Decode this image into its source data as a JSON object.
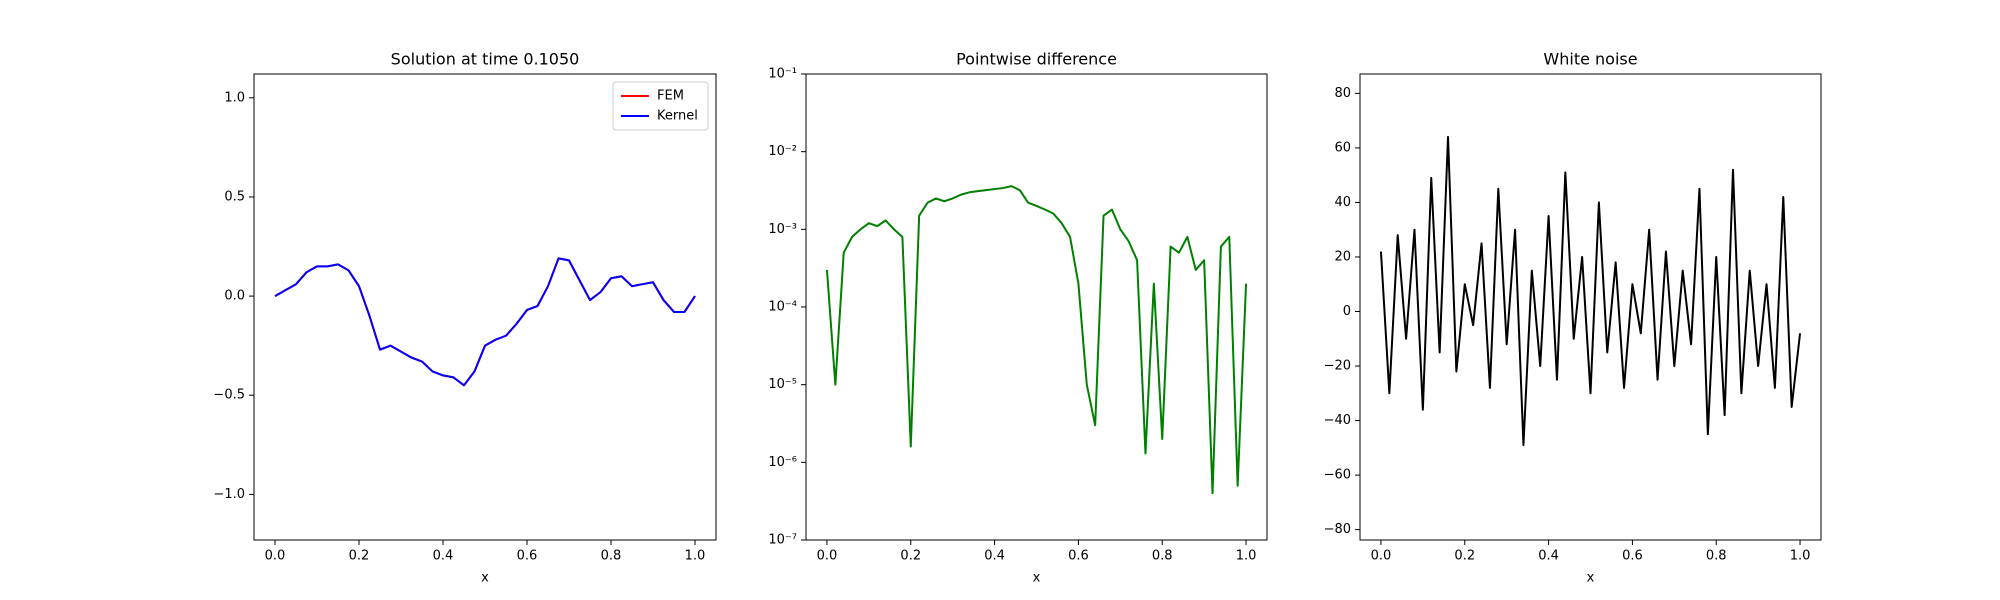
{
  "chart_data": [
    {
      "type": "line",
      "title": "Solution at time 0.1050",
      "x_label": "x",
      "x": [
        0,
        0.025,
        0.05,
        0.075,
        0.1,
        0.125,
        0.15,
        0.175,
        0.2,
        0.225,
        0.25,
        0.275,
        0.3,
        0.325,
        0.35,
        0.375,
        0.4,
        0.425,
        0.45,
        0.475,
        0.5,
        0.525,
        0.55,
        0.575,
        0.6,
        0.625,
        0.65,
        0.675,
        0.7,
        0.725,
        0.75,
        0.775,
        0.8,
        0.825,
        0.85,
        0.875,
        0.9,
        0.925,
        0.95,
        0.975,
        1.0
      ],
      "series": [
        {
          "name": "FEM",
          "color": "#ff0000",
          "values": [
            0.0,
            0.03,
            0.06,
            0.12,
            0.15,
            0.15,
            0.16,
            0.13,
            0.05,
            -0.1,
            -0.27,
            -0.25,
            -0.28,
            -0.31,
            -0.33,
            -0.38,
            -0.4,
            -0.41,
            -0.45,
            -0.38,
            -0.25,
            -0.22,
            -0.2,
            -0.14,
            -0.07,
            -0.05,
            0.05,
            0.19,
            0.18,
            0.08,
            -0.02,
            0.02,
            0.09,
            0.1,
            0.05,
            0.06,
            0.07,
            -0.02,
            -0.08,
            -0.08,
            0.0
          ]
        },
        {
          "name": "Kernel",
          "color": "#0000ff",
          "values": [
            0.0,
            0.03,
            0.06,
            0.12,
            0.15,
            0.15,
            0.16,
            0.13,
            0.05,
            -0.1,
            -0.27,
            -0.25,
            -0.28,
            -0.31,
            -0.33,
            -0.38,
            -0.4,
            -0.41,
            -0.45,
            -0.38,
            -0.25,
            -0.22,
            -0.2,
            -0.14,
            -0.07,
            -0.05,
            0.05,
            0.19,
            0.18,
            0.08,
            -0.02,
            0.02,
            0.09,
            0.1,
            0.05,
            0.06,
            0.07,
            -0.02,
            -0.08,
            -0.08,
            0.0
          ]
        }
      ],
      "legend": "upper right",
      "xlim": [
        -0.05,
        1.05
      ],
      "xticks": [
        {
          "value": 0,
          "label": "0.0"
        },
        {
          "value": 0.2,
          "label": "0.2"
        },
        {
          "value": 0.4,
          "label": "0.4"
        },
        {
          "value": 0.6,
          "label": "0.6"
        },
        {
          "value": 0.8,
          "label": "0.8"
        },
        {
          "value": 1.0,
          "label": "1.0"
        }
      ],
      "ylim": [
        -1.23,
        1.12
      ],
      "yticks": [
        {
          "value": -1.0,
          "label": "−1.0"
        },
        {
          "value": -0.5,
          "label": "−0.5"
        },
        {
          "value": 0,
          "label": "0.0"
        },
        {
          "value": 0.5,
          "label": "0.5"
        },
        {
          "value": 1.0,
          "label": "1.0"
        }
      ]
    },
    {
      "type": "line",
      "title": "Pointwise difference",
      "x_label": "x",
      "yscale": "log",
      "color": "#008000",
      "x": [
        0,
        0.02,
        0.04,
        0.06,
        0.08,
        0.1,
        0.12,
        0.14,
        0.16,
        0.18,
        0.2,
        0.22,
        0.24,
        0.26,
        0.28,
        0.3,
        0.32,
        0.34,
        0.36,
        0.38,
        0.4,
        0.42,
        0.44,
        0.46,
        0.48,
        0.5,
        0.52,
        0.54,
        0.56,
        0.58,
        0.6,
        0.62,
        0.64,
        0.66,
        0.68,
        0.7,
        0.72,
        0.74,
        0.76,
        0.78,
        0.8,
        0.82,
        0.84,
        0.86,
        0.88,
        0.9,
        0.92,
        0.94,
        0.96,
        0.98,
        1.0
      ],
      "values": [
        0.0003,
        1e-05,
        0.0005,
        0.0008,
        0.001,
        0.0012,
        0.0011,
        0.0013,
        0.001,
        0.0008,
        1.6e-06,
        0.0015,
        0.0022,
        0.0025,
        0.0023,
        0.0025,
        0.0028,
        0.003,
        0.0031,
        0.0032,
        0.0033,
        0.0034,
        0.0036,
        0.0032,
        0.0022,
        0.002,
        0.0018,
        0.0016,
        0.0012,
        0.0008,
        0.0002,
        1e-05,
        3e-06,
        0.0015,
        0.0018,
        0.001,
        0.0007,
        0.0004,
        1.3e-06,
        0.0002,
        2e-06,
        0.0006,
        0.0005,
        0.0008,
        0.0003,
        0.0004,
        4e-07,
        0.0006,
        0.0008,
        5e-07,
        0.0002
      ],
      "xlim": [
        -0.05,
        1.05
      ],
      "xticks": [
        {
          "value": 0,
          "label": "0.0"
        },
        {
          "value": 0.2,
          "label": "0.2"
        },
        {
          "value": 0.4,
          "label": "0.4"
        },
        {
          "value": 0.6,
          "label": "0.6"
        },
        {
          "value": 0.8,
          "label": "0.8"
        },
        {
          "value": 1.0,
          "label": "1.0"
        }
      ],
      "ylim": [
        1e-07,
        0.1
      ],
      "yticks": [
        {
          "value": 1e-07,
          "label": "10⁻⁷"
        },
        {
          "value": 1e-06,
          "label": "10⁻⁶"
        },
        {
          "value": 1e-05,
          "label": "10⁻⁵"
        },
        {
          "value": 0.0001,
          "label": "10⁻⁴"
        },
        {
          "value": 0.001,
          "label": "10⁻³"
        },
        {
          "value": 0.01,
          "label": "10⁻²"
        },
        {
          "value": 0.1,
          "label": "10⁻¹"
        }
      ]
    },
    {
      "type": "line",
      "title": "White noise",
      "x_label": "x",
      "color": "#000000",
      "x": [
        0,
        0.02,
        0.04,
        0.06,
        0.08,
        0.1,
        0.12,
        0.14,
        0.16,
        0.18,
        0.2,
        0.22,
        0.24,
        0.26,
        0.28,
        0.3,
        0.32,
        0.34,
        0.36,
        0.38,
        0.4,
        0.42,
        0.44,
        0.46,
        0.48,
        0.5,
        0.52,
        0.54,
        0.56,
        0.58,
        0.6,
        0.62,
        0.64,
        0.66,
        0.68,
        0.7,
        0.72,
        0.74,
        0.76,
        0.78,
        0.8,
        0.82,
        0.84,
        0.86,
        0.88,
        0.9,
        0.92,
        0.94,
        0.96,
        0.98,
        1.0
      ],
      "values": [
        22,
        -30,
        28,
        -10,
        30,
        -36,
        49,
        -15,
        64,
        -22,
        10,
        -5,
        25,
        -28,
        45,
        -12,
        30,
        -49,
        15,
        -20,
        35,
        -25,
        51,
        -10,
        20,
        -30,
        40,
        -15,
        18,
        -28,
        10,
        -8,
        30,
        -25,
        22,
        -20,
        15,
        -12,
        45,
        -45,
        20,
        -38,
        52,
        -30,
        15,
        -20,
        10,
        -28,
        42,
        -35,
        -8
      ],
      "xlim": [
        -0.05,
        1.05
      ],
      "xticks": [
        {
          "value": 0,
          "label": "0.0"
        },
        {
          "value": 0.2,
          "label": "0.2"
        },
        {
          "value": 0.4,
          "label": "0.4"
        },
        {
          "value": 0.6,
          "label": "0.6"
        },
        {
          "value": 0.8,
          "label": "0.8"
        },
        {
          "value": 1.0,
          "label": "1.0"
        }
      ],
      "ylim": [
        -83.8,
        87.1
      ],
      "yticks": [
        {
          "value": -80,
          "label": "−80"
        },
        {
          "value": -60,
          "label": "−60"
        },
        {
          "value": -40,
          "label": "−40"
        },
        {
          "value": -20,
          "label": "−20"
        },
        0,
        20,
        40,
        60,
        80
      ]
    }
  ]
}
